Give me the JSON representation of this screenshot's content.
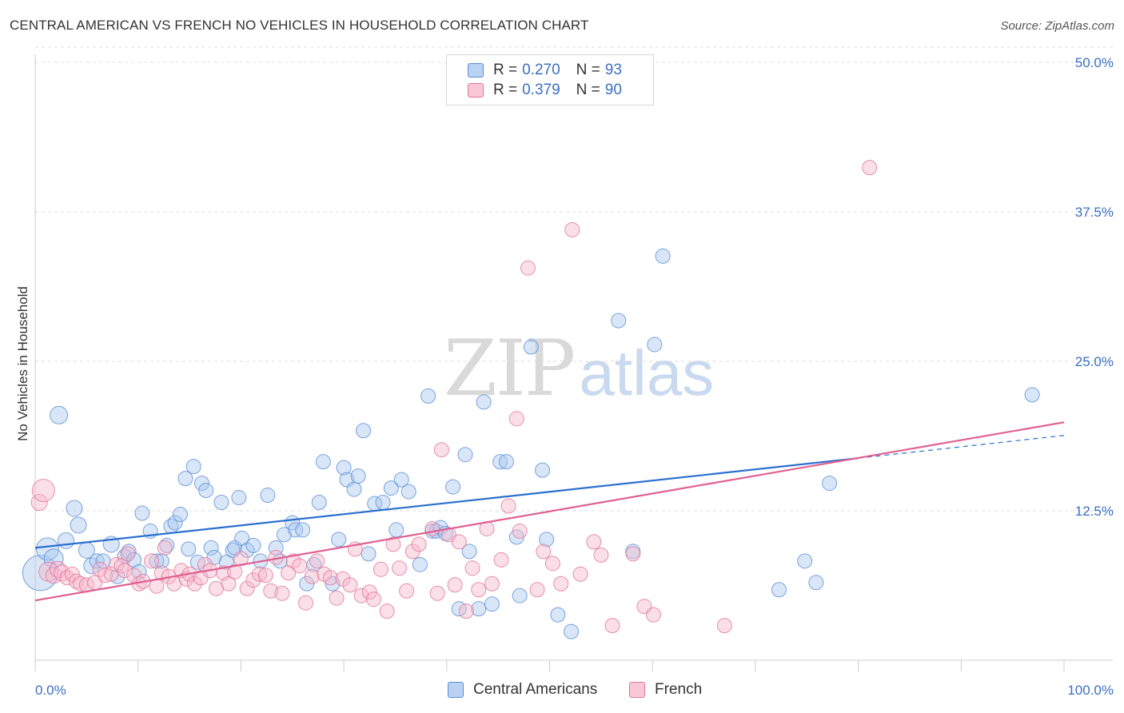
{
  "title": "CENTRAL AMERICAN VS FRENCH NO VEHICLES IN HOUSEHOLD CORRELATION CHART",
  "source": "Source: ZipAtlas.com",
  "watermark": {
    "zip": "ZIP",
    "atlas": "atlas"
  },
  "legend": {
    "r_label": "R =",
    "n_label": "N =",
    "series": [
      {
        "name": "Central Americans",
        "r": "0.270",
        "n": "93"
      },
      {
        "name": "French",
        "r": "0.379",
        "n": "90"
      }
    ]
  },
  "colors": {
    "blue_fill": "#a9c7ef",
    "blue_stroke": "#5b8fd6",
    "blue_line": "#2a6fd0",
    "pink_fill": "#f6b9cc",
    "pink_stroke": "#e07799",
    "pink_line": "#e06090",
    "axis_text": "#3b6fc2",
    "grid": "#dddddd"
  },
  "chart_data": {
    "type": "scatter",
    "ylabel": "No Vehicles in Household",
    "xlim": [
      0,
      100
    ],
    "ylim": [
      0,
      50
    ],
    "x_tick_labels": [
      "0.0%",
      "100.0%"
    ],
    "y_ticks": [
      12.5,
      25.0,
      37.5,
      50.0
    ],
    "y_tick_labels": [
      "12.5%",
      "25.0%",
      "37.5%",
      "50.0%"
    ],
    "grid": true,
    "legend_position": "top-center",
    "series": [
      {
        "name": "Central Americans",
        "trend": {
          "x": [
            0,
            80
          ],
          "y": [
            9.4,
            16.9
          ],
          "dashed_to": [
            100,
            18.8
          ]
        },
        "points": [
          [
            0.5,
            7.3,
            22
          ],
          [
            1.2,
            9.3,
            14
          ],
          [
            1.8,
            8.5,
            12
          ],
          [
            2.3,
            20.5,
            11
          ],
          [
            3,
            10,
            10
          ],
          [
            3.8,
            12.7,
            10
          ],
          [
            4.2,
            11.3,
            10
          ],
          [
            5,
            9.2,
            10
          ],
          [
            5.5,
            7.9,
            10
          ],
          [
            6,
            8.3,
            9
          ],
          [
            6.6,
            8.3,
            9
          ],
          [
            7.4,
            9.7,
            10
          ],
          [
            8,
            7,
            9
          ],
          [
            8.7,
            8.7,
            9
          ],
          [
            9.1,
            9.1,
            9
          ],
          [
            9.6,
            8.4,
            9
          ],
          [
            10.1,
            7.4,
            9
          ],
          [
            10.4,
            12.3,
            9
          ],
          [
            11.2,
            10.8,
            9
          ],
          [
            11.8,
            8.3,
            9
          ],
          [
            12.3,
            8.3,
            9
          ],
          [
            12.8,
            9.6,
            9
          ],
          [
            13.2,
            11.2,
            9
          ],
          [
            13.6,
            11.5,
            9
          ],
          [
            14.1,
            12.2,
            9
          ],
          [
            14.6,
            15.2,
            9
          ],
          [
            14.9,
            9.3,
            9
          ],
          [
            15.4,
            16.2,
            9
          ],
          [
            15.8,
            8.2,
            9
          ],
          [
            16.2,
            14.8,
            9
          ],
          [
            16.6,
            14.2,
            9
          ],
          [
            17.1,
            9.4,
            9
          ],
          [
            17.4,
            8.6,
            9
          ],
          [
            18.1,
            13.2,
            9
          ],
          [
            18.6,
            8.2,
            9
          ],
          [
            19.2,
            9.2,
            9
          ],
          [
            19.4,
            9.4,
            9
          ],
          [
            19.8,
            13.6,
            9
          ],
          [
            20.1,
            10.2,
            9
          ],
          [
            20.6,
            9.2,
            9
          ],
          [
            21.2,
            9.6,
            9
          ],
          [
            21.9,
            8.3,
            9
          ],
          [
            22.6,
            13.8,
            9
          ],
          [
            23.4,
            9.4,
            9
          ],
          [
            23.8,
            8.3,
            9
          ],
          [
            24.2,
            10.5,
            9
          ],
          [
            25,
            11.5,
            9
          ],
          [
            25.3,
            10.9,
            9
          ],
          [
            26,
            10.9,
            9
          ],
          [
            26.4,
            6.4,
            9
          ],
          [
            27.1,
            8,
            9
          ],
          [
            27.6,
            13.2,
            9
          ],
          [
            28,
            16.6,
            9
          ],
          [
            28.9,
            6.4,
            9
          ],
          [
            29.5,
            10.1,
            9
          ],
          [
            30,
            16.1,
            9
          ],
          [
            30.3,
            15.1,
            9
          ],
          [
            31.0,
            14.3,
            9
          ],
          [
            31.4,
            15.4,
            9
          ],
          [
            31.9,
            19.2,
            9
          ],
          [
            32.4,
            8.9,
            9
          ],
          [
            33,
            13.1,
            9
          ],
          [
            33.8,
            13.2,
            9
          ],
          [
            34.6,
            14.4,
            9
          ],
          [
            35.1,
            10.9,
            9
          ],
          [
            35.6,
            15.1,
            9
          ],
          [
            36.3,
            14.1,
            9
          ],
          [
            37.4,
            8.0,
            9
          ],
          [
            38.2,
            22.1,
            9
          ],
          [
            38.6,
            10.8,
            9
          ],
          [
            39.0,
            10.8,
            9
          ],
          [
            39.4,
            11.1,
            9
          ],
          [
            39.9,
            10.6,
            9
          ],
          [
            40.6,
            14.5,
            9
          ],
          [
            41.2,
            4.3,
            9
          ],
          [
            41.8,
            17.2,
            9
          ],
          [
            42.2,
            9.1,
            9
          ],
          [
            43.1,
            4.3,
            9
          ],
          [
            43.6,
            21.6,
            9
          ],
          [
            44.4,
            4.7,
            9
          ],
          [
            45.2,
            16.6,
            9
          ],
          [
            45.8,
            16.6,
            9
          ],
          [
            46.8,
            10.3,
            9
          ],
          [
            47.1,
            5.4,
            9
          ],
          [
            48.2,
            26.2,
            9
          ],
          [
            49.3,
            15.9,
            9
          ],
          [
            49.7,
            10.1,
            9
          ],
          [
            50.8,
            3.8,
            9
          ],
          [
            52.1,
            2.4,
            9
          ],
          [
            56.7,
            28.4,
            9
          ],
          [
            58.1,
            9.1,
            9
          ],
          [
            60.2,
            26.4,
            9
          ],
          [
            61.0,
            33.8,
            9
          ],
          [
            72.3,
            5.9,
            9
          ],
          [
            74.8,
            8.3,
            9
          ],
          [
            75.9,
            6.5,
            9
          ],
          [
            77.2,
            14.8,
            9
          ],
          [
            96.9,
            22.2,
            9
          ]
        ]
      },
      {
        "name": "French",
        "trend": {
          "x": [
            0,
            100
          ],
          "y": [
            5.0,
            19.9
          ]
        },
        "points": [
          [
            0.4,
            13.2,
            10
          ],
          [
            0.8,
            14.2,
            14
          ],
          [
            1.3,
            7.4,
            12
          ],
          [
            1.8,
            7.1,
            10
          ],
          [
            2.2,
            7.6,
            10
          ],
          [
            2.6,
            7.3,
            10
          ],
          [
            3.1,
            6.9,
            9
          ],
          [
            3.6,
            7.2,
            9
          ],
          [
            4.0,
            6.6,
            9
          ],
          [
            4.4,
            6.4,
            9
          ],
          [
            5.0,
            6.3,
            9
          ],
          [
            5.8,
            6.5,
            9
          ],
          [
            6.3,
            7.6,
            9
          ],
          [
            6.8,
            7.1,
            9
          ],
          [
            7.4,
            7.2,
            9
          ],
          [
            7.9,
            8.0,
            9
          ],
          [
            8.4,
            7.9,
            9
          ],
          [
            8.7,
            7.5,
            9
          ],
          [
            9.0,
            8.9,
            9
          ],
          [
            9.6,
            7.1,
            9
          ],
          [
            10.1,
            6.4,
            9
          ],
          [
            10.5,
            6.6,
            9
          ],
          [
            11.3,
            8.3,
            9
          ],
          [
            11.8,
            6.2,
            9
          ],
          [
            12.3,
            7.3,
            9
          ],
          [
            12.6,
            9.4,
            9
          ],
          [
            13.0,
            7.0,
            9
          ],
          [
            13.5,
            6.4,
            9
          ],
          [
            14.2,
            7.5,
            9
          ],
          [
            14.7,
            6.8,
            9
          ],
          [
            15.0,
            7.2,
            9
          ],
          [
            15.5,
            6.4,
            9
          ],
          [
            16.1,
            6.9,
            9
          ],
          [
            16.5,
            8.0,
            9
          ],
          [
            17.0,
            7.5,
            9
          ],
          [
            17.6,
            6.0,
            9
          ],
          [
            18.3,
            7.3,
            9
          ],
          [
            18.8,
            6.4,
            9
          ],
          [
            19.4,
            7.4,
            9
          ],
          [
            20.0,
            8.5,
            9
          ],
          [
            20.6,
            6.0,
            9
          ],
          [
            21.2,
            6.7,
            9
          ],
          [
            21.8,
            7.2,
            9
          ],
          [
            22.4,
            7.1,
            9
          ],
          [
            22.9,
            5.8,
            9
          ],
          [
            23.4,
            8.6,
            9
          ],
          [
            24.0,
            5.6,
            9
          ],
          [
            24.6,
            7.3,
            9
          ],
          [
            25.1,
            8.3,
            9
          ],
          [
            25.7,
            7.9,
            9
          ],
          [
            26.3,
            4.8,
            9
          ],
          [
            26.9,
            7.0,
            9
          ],
          [
            27.4,
            8.3,
            9
          ],
          [
            28.1,
            7.2,
            9
          ],
          [
            28.7,
            6.9,
            9
          ],
          [
            29.3,
            5.2,
            9
          ],
          [
            29.9,
            6.8,
            9
          ],
          [
            30.6,
            6.3,
            9
          ],
          [
            31.1,
            9.3,
            9
          ],
          [
            31.7,
            5.4,
            9
          ],
          [
            32.5,
            5.7,
            9
          ],
          [
            32.9,
            5.1,
            9
          ],
          [
            33.6,
            7.6,
            9
          ],
          [
            34.2,
            4.1,
            9
          ],
          [
            34.8,
            9.7,
            9
          ],
          [
            35.4,
            7.7,
            9
          ],
          [
            36.1,
            5.8,
            9
          ],
          [
            36.7,
            9.1,
            9
          ],
          [
            37.3,
            9.7,
            9
          ],
          [
            38.6,
            11.0,
            9
          ],
          [
            39.1,
            5.6,
            9
          ],
          [
            39.5,
            17.6,
            9
          ],
          [
            40.2,
            10.5,
            9
          ],
          [
            40.8,
            6.3,
            9
          ],
          [
            41.2,
            9.9,
            9
          ],
          [
            41.9,
            4.1,
            9
          ],
          [
            42.5,
            7.7,
            9
          ],
          [
            43.1,
            5.9,
            9
          ],
          [
            43.9,
            11.0,
            9
          ],
          [
            44.4,
            6.4,
            9
          ],
          [
            45.3,
            8.4,
            9
          ],
          [
            46.0,
            12.9,
            9
          ],
          [
            46.8,
            20.2,
            9
          ],
          [
            47.1,
            10.8,
            9
          ],
          [
            47.9,
            32.8,
            9
          ],
          [
            48.8,
            5.9,
            9
          ],
          [
            49.4,
            9.1,
            9
          ],
          [
            50.3,
            8.1,
            9
          ],
          [
            51.1,
            6.4,
            9
          ],
          [
            52.2,
            36.0,
            9
          ],
          [
            53.0,
            7.2,
            9
          ],
          [
            54.3,
            9.9,
            9
          ],
          [
            55.0,
            8.8,
            9
          ],
          [
            56.1,
            2.9,
            9
          ],
          [
            58.1,
            8.9,
            9
          ],
          [
            59.2,
            4.5,
            9
          ],
          [
            60.1,
            3.8,
            9
          ],
          [
            67.0,
            2.9,
            9
          ],
          [
            81.1,
            41.2,
            9
          ]
        ]
      }
    ]
  }
}
